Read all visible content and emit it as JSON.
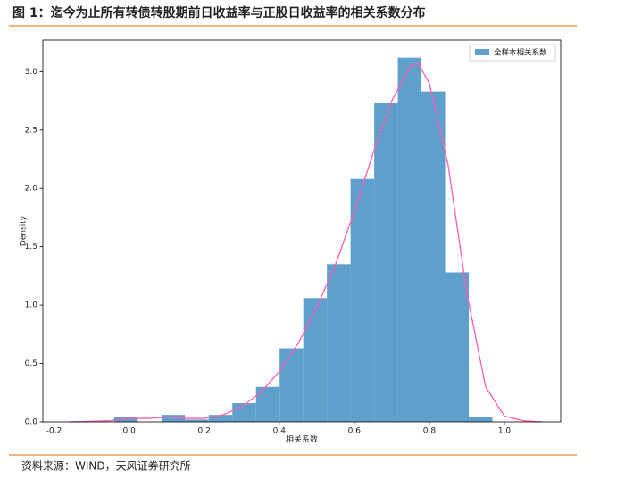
{
  "title": "图 1：迄今为止所有转债转股期前日收益率与正股日收益率的相关系数分布",
  "source": "资料来源：WIND，天风证券研究所",
  "chart_data": {
    "type": "histogram",
    "xlabel": "相关系数",
    "ylabel": "Density",
    "name": "全样本相关系数",
    "color": "#5f9fcb",
    "bins": [
      -0.04,
      0.023,
      0.086,
      0.149,
      0.212,
      0.275,
      0.338,
      0.401,
      0.464,
      0.527,
      0.59,
      0.653,
      0.716,
      0.779,
      0.842,
      0.905,
      0.968
    ],
    "values": [
      0.04,
      0,
      0.06,
      0.02,
      0.06,
      0.16,
      0.3,
      0.63,
      1.06,
      1.35,
      2.08,
      2.73,
      3.12,
      2.83,
      1.28,
      0.04
    ],
    "kde": {
      "color": "#ff5cb8",
      "x": [
        -0.16,
        -0.05,
        0.0,
        0.05,
        0.1,
        0.15,
        0.2,
        0.25,
        0.3,
        0.35,
        0.4,
        0.45,
        0.5,
        0.55,
        0.6,
        0.65,
        0.7,
        0.75,
        0.77,
        0.8,
        0.85,
        0.9,
        0.95,
        1.0,
        1.05,
        1.1
      ],
      "values": [
        0,
        0.01,
        0.03,
        0.03,
        0.04,
        0.03,
        0.03,
        0.06,
        0.13,
        0.25,
        0.43,
        0.67,
        0.98,
        1.35,
        1.8,
        2.3,
        2.75,
        3.05,
        3.07,
        2.9,
        2.2,
        1.1,
        0.3,
        0.05,
        0.01,
        0
      ]
    },
    "xlim": [
      -0.23,
      1.15
    ],
    "ylim": [
      0,
      3.27
    ],
    "xticks": [
      -0.2,
      {
        "value": 0,
        "label": "0.0"
      },
      0.2,
      0.4,
      0.6,
      0.8,
      {
        "value": 1,
        "label": "1.0"
      }
    ],
    "yticks": [
      {
        "value": 0,
        "label": "0.0"
      },
      0.5,
      {
        "value": 1,
        "label": "1.0"
      },
      1.5,
      {
        "value": 2,
        "label": "2.0"
      },
      2.5,
      {
        "value": 3,
        "label": "3.0"
      }
    ],
    "legend": "upper right"
  }
}
